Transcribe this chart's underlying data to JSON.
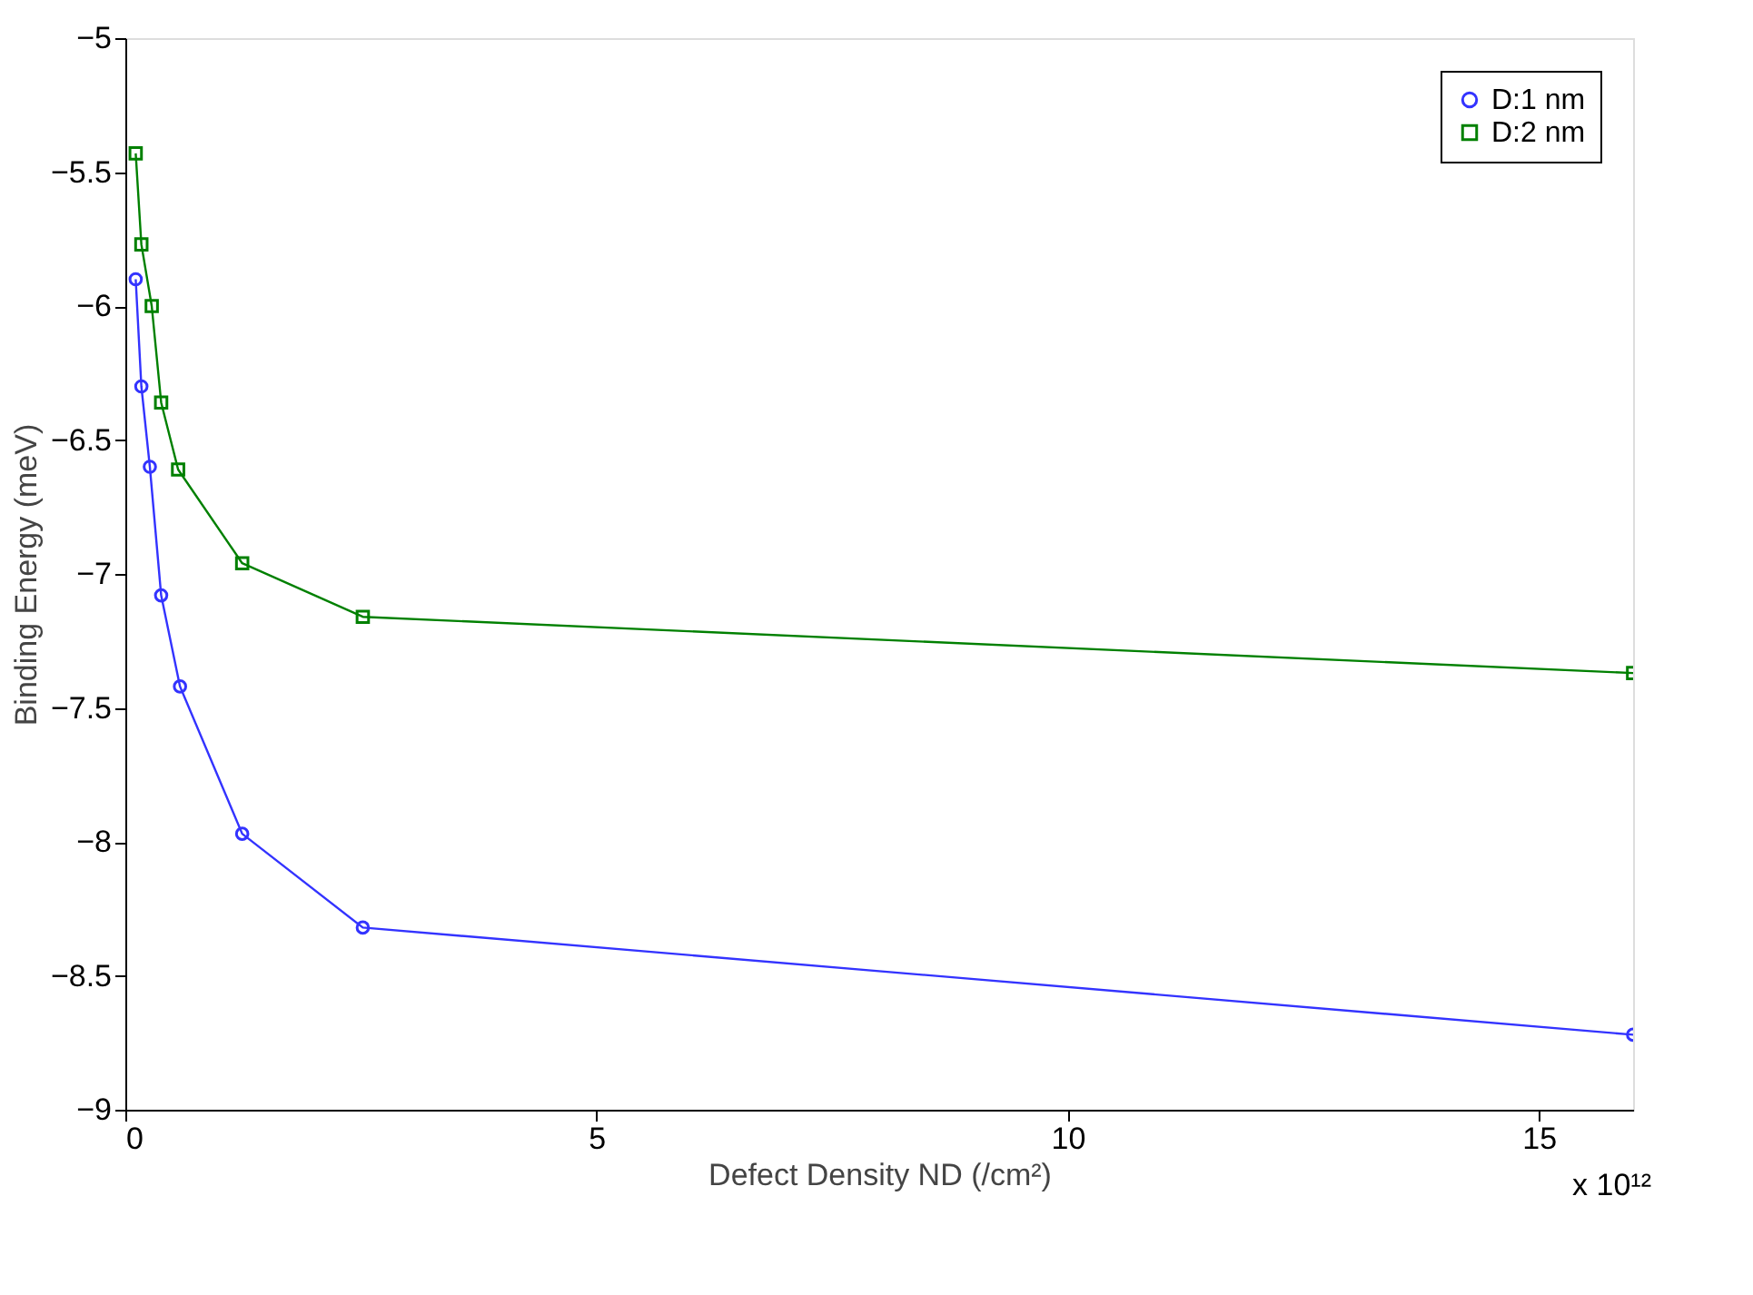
{
  "chart_data": {
    "type": "line",
    "xlabel": "Defect Density ND (/cm²)",
    "ylabel": "Binding Energy (meV)",
    "annotations": [
      "x 10¹²"
    ],
    "xlim": [
      0,
      16
    ],
    "xticks": [
      0,
      5,
      10,
      15
    ],
    "ylim": [
      -9,
      -5
    ],
    "yticks": [
      -9,
      -8.5,
      -8,
      -7.5,
      -7,
      -6.5,
      -6,
      -5.5,
      -5
    ],
    "grid": false,
    "legend": "top right",
    "series": [
      {
        "name": "D:1 nm",
        "color": "#3333ff",
        "marker": "circle",
        "x": [
          0.11,
          0.17,
          0.26,
          0.38,
          0.58,
          1.24,
          2.52,
          16
        ],
        "values": [
          -5.9,
          -6.3,
          -6.6,
          -7.08,
          -7.42,
          -7.97,
          -8.32,
          -8.72
        ]
      },
      {
        "name": "D:2 nm",
        "color": "#008000",
        "marker": "square",
        "x": [
          0.11,
          0.17,
          0.28,
          0.38,
          0.56,
          1.24,
          2.52,
          16
        ],
        "values": [
          -5.43,
          -5.77,
          -6.0,
          -6.36,
          -6.61,
          -6.96,
          -7.16,
          -7.37
        ]
      }
    ]
  }
}
